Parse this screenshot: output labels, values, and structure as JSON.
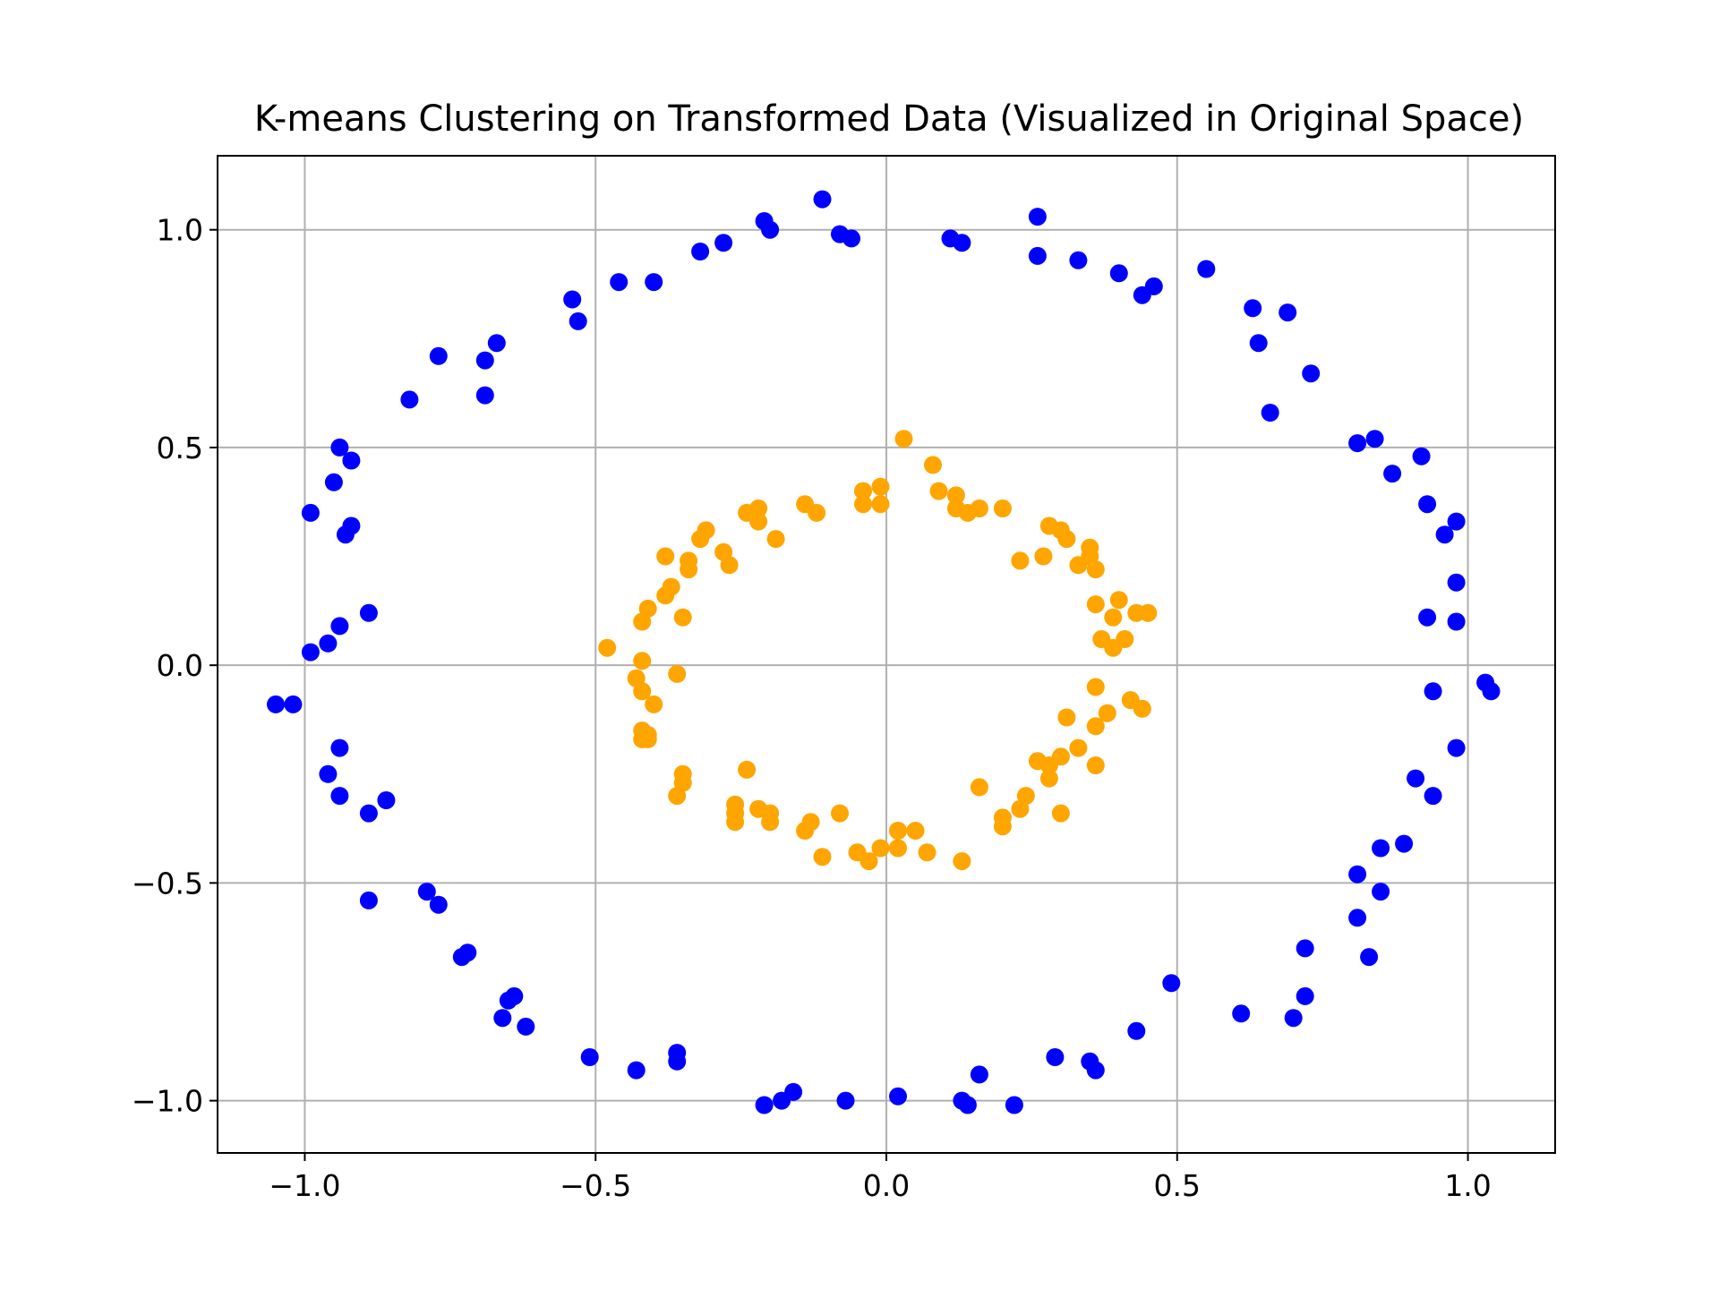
{
  "chart_data": {
    "type": "scatter",
    "title": "K-means Clustering on Transformed Data (Visualized in Original Space)",
    "xlabel": "",
    "ylabel": "",
    "xlim": [
      -1.15,
      1.15
    ],
    "ylim": [
      -1.12,
      1.17
    ],
    "xticks": [
      -1.0,
      -0.5,
      0.0,
      0.5,
      1.0
    ],
    "yticks": [
      -1.0,
      -0.5,
      0.0,
      0.5,
      1.0
    ],
    "tick_labels_x": [
      "−1.0",
      "−0.5",
      "0.0",
      "0.5",
      "1.0"
    ],
    "tick_labels_y": [
      "−1.0",
      "−0.5",
      "0.0",
      "0.5",
      "1.0"
    ],
    "grid": true,
    "legend": "none",
    "series": [
      {
        "color": "#0000ff",
        "points": [
          [
            -0.11,
            1.07
          ],
          [
            -0.21,
            1.02
          ],
          [
            -0.2,
            1.0
          ],
          [
            -0.08,
            0.99
          ],
          [
            -0.06,
            0.98
          ],
          [
            0.11,
            0.98
          ],
          [
            0.13,
            0.97
          ],
          [
            0.26,
            1.03
          ],
          [
            0.26,
            0.94
          ],
          [
            0.33,
            0.93
          ],
          [
            0.4,
            0.9
          ],
          [
            0.44,
            0.85
          ],
          [
            0.46,
            0.87
          ],
          [
            0.55,
            0.91
          ],
          [
            -0.32,
            0.95
          ],
          [
            -0.28,
            0.97
          ],
          [
            -0.46,
            0.88
          ],
          [
            -0.4,
            0.88
          ],
          [
            -0.54,
            0.84
          ],
          [
            -0.53,
            0.79
          ],
          [
            -0.67,
            0.74
          ],
          [
            -0.69,
            0.7
          ],
          [
            -0.69,
            0.62
          ],
          [
            -0.77,
            0.71
          ],
          [
            -0.82,
            0.61
          ],
          [
            0.63,
            0.82
          ],
          [
            0.69,
            0.81
          ],
          [
            0.64,
            0.74
          ],
          [
            0.73,
            0.67
          ],
          [
            0.66,
            0.58
          ],
          [
            0.81,
            0.51
          ],
          [
            0.84,
            0.52
          ],
          [
            0.87,
            0.44
          ],
          [
            0.92,
            0.48
          ],
          [
            0.93,
            0.37
          ],
          [
            0.96,
            0.3
          ],
          [
            0.98,
            0.33
          ],
          [
            0.98,
            0.19
          ],
          [
            0.93,
            0.11
          ],
          [
            0.98,
            0.1
          ],
          [
            -0.94,
            0.5
          ],
          [
            -0.92,
            0.47
          ],
          [
            -0.95,
            0.42
          ],
          [
            -0.99,
            0.35
          ],
          [
            -0.93,
            0.3
          ],
          [
            -0.92,
            0.32
          ],
          [
            -0.89,
            0.12
          ],
          [
            -0.94,
            0.09
          ],
          [
            -0.96,
            0.05
          ],
          [
            -0.99,
            0.03
          ],
          [
            -1.05,
            -0.09
          ],
          [
            -1.02,
            -0.09
          ],
          [
            1.03,
            -0.04
          ],
          [
            1.04,
            -0.06
          ],
          [
            0.94,
            -0.06
          ],
          [
            0.98,
            -0.19
          ],
          [
            0.91,
            -0.26
          ],
          [
            0.94,
            -0.3
          ],
          [
            0.89,
            -0.41
          ],
          [
            0.85,
            -0.42
          ],
          [
            0.81,
            -0.48
          ],
          [
            0.85,
            -0.52
          ],
          [
            0.81,
            -0.58
          ],
          [
            0.83,
            -0.67
          ],
          [
            0.72,
            -0.65
          ],
          [
            0.72,
            -0.76
          ],
          [
            0.7,
            -0.81
          ],
          [
            0.61,
            -0.8
          ],
          [
            -0.94,
            -0.19
          ],
          [
            -0.96,
            -0.25
          ],
          [
            -0.94,
            -0.3
          ],
          [
            -0.86,
            -0.31
          ],
          [
            -0.89,
            -0.34
          ],
          [
            -0.89,
            -0.54
          ],
          [
            -0.79,
            -0.52
          ],
          [
            -0.77,
            -0.55
          ],
          [
            -0.72,
            -0.66
          ],
          [
            -0.73,
            -0.67
          ],
          [
            -0.65,
            -0.77
          ],
          [
            -0.64,
            -0.76
          ],
          [
            -0.66,
            -0.81
          ],
          [
            -0.62,
            -0.83
          ],
          [
            0.49,
            -0.73
          ],
          [
            0.43,
            -0.84
          ],
          [
            0.35,
            -0.91
          ],
          [
            0.36,
            -0.93
          ],
          [
            0.29,
            -0.9
          ],
          [
            0.16,
            -0.94
          ],
          [
            0.22,
            -1.01
          ],
          [
            0.13,
            -1.0
          ],
          [
            0.14,
            -1.01
          ],
          [
            0.02,
            -0.99
          ],
          [
            -0.07,
            -1.0
          ],
          [
            -0.16,
            -0.98
          ],
          [
            -0.18,
            -1.0
          ],
          [
            -0.21,
            -1.01
          ],
          [
            -0.51,
            -0.9
          ],
          [
            -0.43,
            -0.93
          ],
          [
            -0.36,
            -0.89
          ],
          [
            -0.36,
            -0.91
          ]
        ]
      },
      {
        "color": "#ffa500",
        "points": [
          [
            0.03,
            0.52
          ],
          [
            0.08,
            0.46
          ],
          [
            0.09,
            0.4
          ],
          [
            0.12,
            0.39
          ],
          [
            0.12,
            0.36
          ],
          [
            0.14,
            0.35
          ],
          [
            0.16,
            0.36
          ],
          [
            0.2,
            0.36
          ],
          [
            -0.04,
            0.4
          ],
          [
            -0.01,
            0.41
          ],
          [
            -0.04,
            0.37
          ],
          [
            -0.01,
            0.37
          ],
          [
            -0.14,
            0.37
          ],
          [
            -0.12,
            0.35
          ],
          [
            -0.22,
            0.36
          ],
          [
            -0.24,
            0.35
          ],
          [
            -0.22,
            0.33
          ],
          [
            -0.19,
            0.29
          ],
          [
            -0.31,
            0.31
          ],
          [
            -0.32,
            0.29
          ],
          [
            -0.28,
            0.26
          ],
          [
            -0.27,
            0.23
          ],
          [
            -0.38,
            0.25
          ],
          [
            -0.34,
            0.24
          ],
          [
            -0.34,
            0.22
          ],
          [
            -0.37,
            0.18
          ],
          [
            -0.38,
            0.16
          ],
          [
            -0.41,
            0.13
          ],
          [
            -0.42,
            0.1
          ],
          [
            -0.35,
            0.11
          ],
          [
            0.28,
            0.32
          ],
          [
            0.3,
            0.31
          ],
          [
            0.31,
            0.29
          ],
          [
            0.35,
            0.27
          ],
          [
            0.35,
            0.25
          ],
          [
            0.33,
            0.23
          ],
          [
            0.36,
            0.22
          ],
          [
            0.23,
            0.24
          ],
          [
            0.27,
            0.25
          ],
          [
            0.36,
            0.14
          ],
          [
            0.4,
            0.15
          ],
          [
            0.43,
            0.12
          ],
          [
            0.45,
            0.12
          ],
          [
            0.39,
            0.11
          ],
          [
            0.37,
            0.06
          ],
          [
            0.39,
            0.04
          ],
          [
            0.41,
            0.06
          ],
          [
            -0.48,
            0.04
          ],
          [
            -0.42,
            0.01
          ],
          [
            -0.43,
            -0.03
          ],
          [
            -0.36,
            -0.02
          ],
          [
            -0.42,
            -0.06
          ],
          [
            -0.4,
            -0.09
          ],
          [
            -0.42,
            -0.15
          ],
          [
            -0.41,
            -0.17
          ],
          [
            -0.41,
            -0.16
          ],
          [
            -0.42,
            -0.17
          ],
          [
            0.36,
            -0.05
          ],
          [
            0.42,
            -0.08
          ],
          [
            0.44,
            -0.1
          ],
          [
            0.38,
            -0.11
          ],
          [
            0.36,
            -0.14
          ],
          [
            0.31,
            -0.12
          ],
          [
            0.33,
            -0.19
          ],
          [
            0.3,
            -0.21
          ],
          [
            0.28,
            -0.23
          ],
          [
            0.26,
            -0.22
          ],
          [
            0.28,
            -0.26
          ],
          [
            0.36,
            -0.23
          ],
          [
            -0.35,
            -0.25
          ],
          [
            -0.35,
            -0.27
          ],
          [
            -0.36,
            -0.3
          ],
          [
            -0.24,
            -0.24
          ],
          [
            -0.26,
            -0.32
          ],
          [
            -0.26,
            -0.34
          ],
          [
            -0.26,
            -0.36
          ],
          [
            -0.22,
            -0.33
          ],
          [
            -0.2,
            -0.34
          ],
          [
            -0.2,
            -0.36
          ],
          [
            -0.13,
            -0.36
          ],
          [
            -0.14,
            -0.38
          ],
          [
            -0.08,
            -0.34
          ],
          [
            0.16,
            -0.28
          ],
          [
            0.24,
            -0.3
          ],
          [
            0.23,
            -0.33
          ],
          [
            0.3,
            -0.34
          ],
          [
            0.2,
            -0.35
          ],
          [
            0.2,
            -0.37
          ],
          [
            -0.11,
            -0.44
          ],
          [
            -0.05,
            -0.43
          ],
          [
            -0.03,
            -0.45
          ],
          [
            -0.01,
            -0.42
          ],
          [
            0.02,
            -0.42
          ],
          [
            0.02,
            -0.38
          ],
          [
            0.05,
            -0.38
          ],
          [
            0.07,
            -0.43
          ],
          [
            0.13,
            -0.45
          ]
        ]
      }
    ]
  }
}
